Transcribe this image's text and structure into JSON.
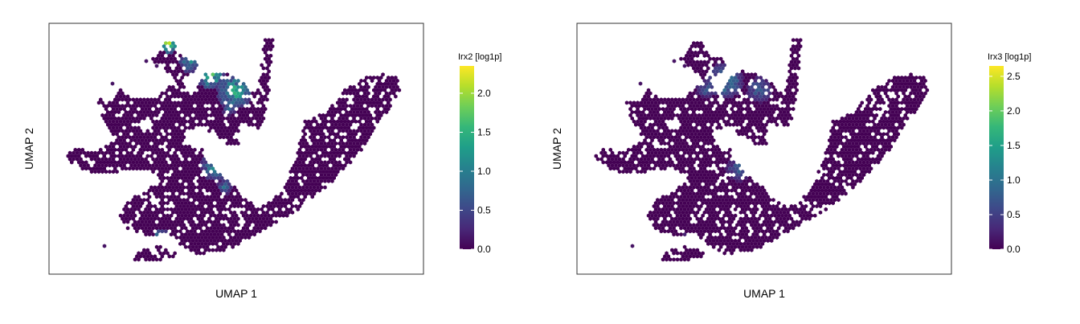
{
  "colors": {
    "viridis": [
      "#440154",
      "#482878",
      "#3e4989",
      "#31688e",
      "#26828e",
      "#1f9e89",
      "#35b779",
      "#6ece58",
      "#b5de2b",
      "#fde725"
    ],
    "frame": "#333333",
    "background": "#ffffff"
  },
  "chart_data": [
    {
      "type": "heatmap",
      "subtype": "hexbin-umap",
      "xlabel": "UMAP 1",
      "ylabel": "UMAP 2",
      "legend": {
        "title": "Irx2 [log1p]",
        "placement": "right",
        "range": [
          0,
          2.35
        ],
        "ticks": [
          0.0,
          0.5,
          1.0,
          1.5,
          2.0
        ],
        "tick_labels": [
          "0.0",
          "0.5",
          "1.0",
          "1.5",
          "2.0"
        ]
      },
      "grid": false,
      "max_value": 2.35
    },
    {
      "type": "heatmap",
      "subtype": "hexbin-umap",
      "xlabel": "UMAP 1",
      "ylabel": "UMAP 2",
      "legend": {
        "title": "Irx3 [log1p]",
        "placement": "right",
        "range": [
          0,
          2.65
        ],
        "ticks": [
          0.0,
          0.5,
          1.0,
          1.5,
          2.0,
          2.5
        ],
        "tick_labels": [
          "0.0",
          "0.5",
          "1.0",
          "1.5",
          "2.0",
          "2.5"
        ]
      },
      "grid": false,
      "max_value": 2.65
    }
  ]
}
